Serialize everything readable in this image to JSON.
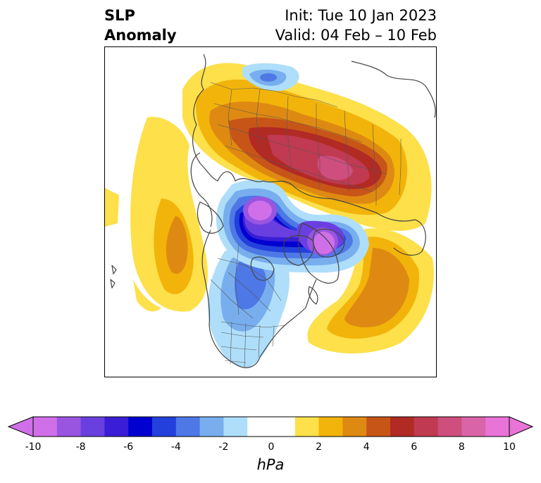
{
  "title": {
    "left_line1": "SLP",
    "left_line2": "Anomaly",
    "right_line1": "Init: Tue 10 Jan 2023",
    "right_line2": "Valid: 04 Feb – 10 Feb"
  },
  "map": {
    "projection": "polar-stereographic",
    "features": [
      "coastlines",
      "country-borders",
      "us-state-borders",
      "canada-province-borders"
    ],
    "anomaly_centers": [
      {
        "label": "negative-center-hudson-baffin",
        "sign": "negative",
        "peak_hpa": -10
      },
      {
        "label": "negative-center-svalbard-barents",
        "sign": "negative",
        "peak_hpa": -10
      },
      {
        "label": "positive-center-siberia",
        "sign": "positive",
        "peak_hpa": 8
      },
      {
        "label": "positive-center-north-pacific",
        "sign": "positive",
        "peak_hpa": 4
      },
      {
        "label": "positive-center-north-atlantic",
        "sign": "positive",
        "peak_hpa": 4
      },
      {
        "label": "negative-area-north-america",
        "sign": "negative",
        "peak_hpa": -4
      },
      {
        "label": "negative-area-scandinavia",
        "sign": "negative",
        "peak_hpa": -3
      }
    ]
  },
  "colorbar": {
    "units": "hPa",
    "tick_labels": [
      "-10",
      "-8",
      "-6",
      "-4",
      "-2",
      "0",
      "2",
      "4",
      "6",
      "8",
      "10"
    ],
    "levels": [
      -10,
      -9,
      -8,
      -7,
      -6,
      -5,
      -4,
      -3,
      -2,
      -1,
      1,
      2,
      3,
      4,
      5,
      6,
      7,
      8,
      9,
      10
    ],
    "colors": [
      "#d070e8",
      "#9a55e0",
      "#6a3fe0",
      "#3a1dd6",
      "#0000d0",
      "#2340dc",
      "#4e78e6",
      "#78aeee",
      "#aedefa",
      "#ffffff",
      "#fde04a",
      "#f2b40a",
      "#de8a12",
      "#c85518",
      "#b12a24",
      "#c03a52",
      "#ce4e7e",
      "#d965a8",
      "#e874d8"
    ],
    "extend_low_color": "#d070e8",
    "extend_high_color": "#e874d8"
  }
}
